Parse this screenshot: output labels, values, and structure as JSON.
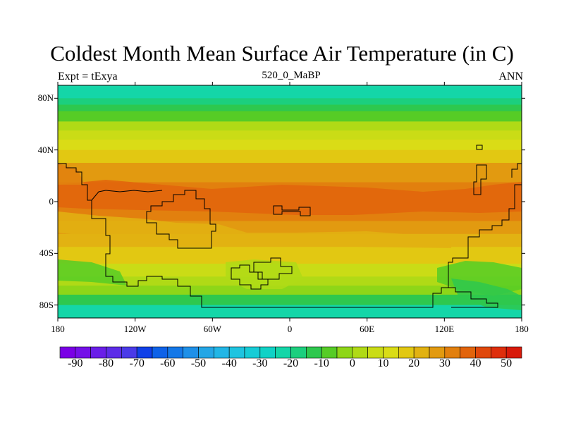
{
  "title": "Coldest Month Mean Surface Air Temperature (in C)",
  "left_label": "Expt = tExya",
  "center_label": "520_0_MaBP",
  "right_label": "ANN",
  "map": {
    "projection": "cylindrical-equidistant",
    "lon_range": [
      -180,
      180
    ],
    "lat_range": [
      -90,
      90
    ],
    "lat_ticks": [
      {
        "value": 80,
        "label": "80N"
      },
      {
        "value": 40,
        "label": "40N"
      },
      {
        "value": 0,
        "label": "0"
      },
      {
        "value": -40,
        "label": "40S"
      },
      {
        "value": -80,
        "label": "80S"
      }
    ],
    "lon_ticks": [
      {
        "value": -180,
        "label": "180"
      },
      {
        "value": -120,
        "label": "120W"
      },
      {
        "value": -60,
        "label": "60W"
      },
      {
        "value": 0,
        "label": "0"
      },
      {
        "value": 60,
        "label": "60E"
      },
      {
        "value": 120,
        "label": "120E"
      },
      {
        "value": 180,
        "label": "180"
      }
    ]
  },
  "colorbar": {
    "min": -95,
    "max": 55,
    "step": 5,
    "tick_values": [
      -90,
      -80,
      -70,
      -60,
      -50,
      -40,
      -30,
      -20,
      -10,
      0,
      10,
      20,
      30,
      40,
      50
    ],
    "colors": [
      "#7a00e6",
      "#7410e8",
      "#6a1ee8",
      "#5d2ce8",
      "#4a3ae8",
      "#1040e8",
      "#0e62e8",
      "#1478e8",
      "#1e90e8",
      "#24a6e6",
      "#22b6e6",
      "#1ec4e0",
      "#16ccd6",
      "#10d2c6",
      "#14d6a8",
      "#1ccf7e",
      "#2ec84e",
      "#56cc26",
      "#8ed618",
      "#b0da16",
      "#cadc16",
      "#dadc16",
      "#e2c812",
      "#e2b212",
      "#e29a10",
      "#e2800e",
      "#e2640c",
      "#e0480c",
      "#de2e0c",
      "#d81a0a"
    ]
  },
  "field": {
    "description_bands": [
      {
        "lat_from": 90,
        "lat_to": 80,
        "value": -24
      },
      {
        "lat_from": 80,
        "lat_to": 75,
        "value": -17
      },
      {
        "lat_from": 75,
        "lat_to": 70,
        "value": -12
      },
      {
        "lat_from": 70,
        "lat_to": 62,
        "value": -6
      },
      {
        "lat_from": 62,
        "lat_to": 55,
        "value": 0
      },
      {
        "lat_from": 55,
        "lat_to": 48,
        "value": 7
      },
      {
        "lat_from": 48,
        "lat_to": 40,
        "value": 13
      },
      {
        "lat_from": 40,
        "lat_to": 30,
        "value": 19
      },
      {
        "lat_from": 30,
        "lat_to": 15,
        "value": 26
      },
      {
        "lat_from": 15,
        "lat_to": -15,
        "value": 31
      },
      {
        "lat_from": -15,
        "lat_to": -25,
        "value": 26
      },
      {
        "lat_from": -25,
        "lat_to": -35,
        "value": 21
      },
      {
        "lat_from": -35,
        "lat_to": -48,
        "value": 15
      },
      {
        "lat_from": -48,
        "lat_to": -58,
        "value": 9
      },
      {
        "lat_from": -58,
        "lat_to": -65,
        "value": 3
      },
      {
        "lat_from": -65,
        "lat_to": -72,
        "value": -4
      },
      {
        "lat_from": -72,
        "lat_to": -80,
        "value": -12
      },
      {
        "lat_from": -80,
        "lat_to": -90,
        "value": -22
      }
    ]
  }
}
